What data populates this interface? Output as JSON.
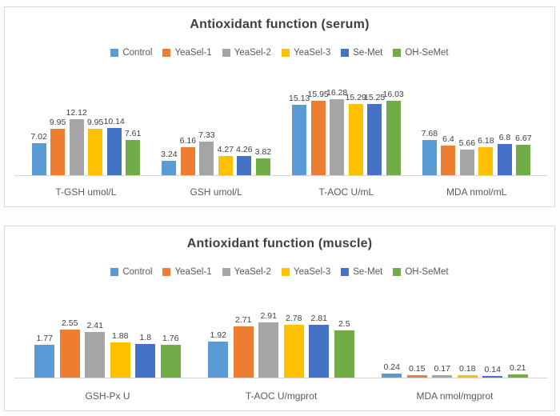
{
  "chart_data": [
    {
      "type": "bar",
      "title": "Antioxidant function (serum)",
      "legend_position": "top",
      "grid": false,
      "y_axis_visible": false,
      "ylim": [
        0,
        18
      ],
      "categories": [
        "T-GSH umol/L",
        "GSH umol/L",
        "T-AOC U/mL",
        "MDA nmol/mL"
      ],
      "series": [
        {
          "name": "Control",
          "color": "#5B9BD5",
          "values": [
            7.02,
            3.24,
            15.13,
            7.68
          ]
        },
        {
          "name": "YeaSel-1",
          "color": "#ED7D31",
          "values": [
            9.95,
            6.16,
            15.95,
            6.4
          ]
        },
        {
          "name": "YeaSel-2",
          "color": "#A5A5A5",
          "values": [
            12.12,
            7.33,
            16.28,
            5.66
          ]
        },
        {
          "name": "YeaSel-3",
          "color": "#FFC000",
          "values": [
            9.95,
            4.27,
            15.29,
            6.18
          ]
        },
        {
          "name": "Se-Met",
          "color": "#4472C4",
          "values": [
            10.14,
            4.26,
            15.25,
            6.8
          ]
        },
        {
          "name": "OH-SeMet",
          "color": "#70AD47",
          "values": [
            7.61,
            3.82,
            16.03,
            6.67
          ]
        }
      ]
    },
    {
      "type": "bar",
      "title": "Antioxidant function (muscle)",
      "legend_position": "top",
      "grid": false,
      "y_axis_visible": false,
      "ylim": [
        0,
        3.5
      ],
      "categories": [
        "GSH-Px U",
        "T-AOC U/mgprot",
        "MDA nmol/mgprot"
      ],
      "series": [
        {
          "name": "Control",
          "color": "#5B9BD5",
          "values": [
            1.77,
            1.92,
            0.24
          ]
        },
        {
          "name": "YeaSel-1",
          "color": "#ED7D31",
          "values": [
            2.55,
            2.71,
            0.15
          ]
        },
        {
          "name": "YeaSel-2",
          "color": "#A5A5A5",
          "values": [
            2.41,
            2.91,
            0.17
          ]
        },
        {
          "name": "YeaSel-3",
          "color": "#FFC000",
          "values": [
            1.88,
            2.78,
            0.18
          ]
        },
        {
          "name": "Se-Met",
          "color": "#4472C4",
          "values": [
            1.8,
            2.81,
            0.14
          ]
        },
        {
          "name": "OH-SeMet",
          "color": "#70AD47",
          "values": [
            1.76,
            2.5,
            0.21
          ]
        }
      ]
    }
  ]
}
